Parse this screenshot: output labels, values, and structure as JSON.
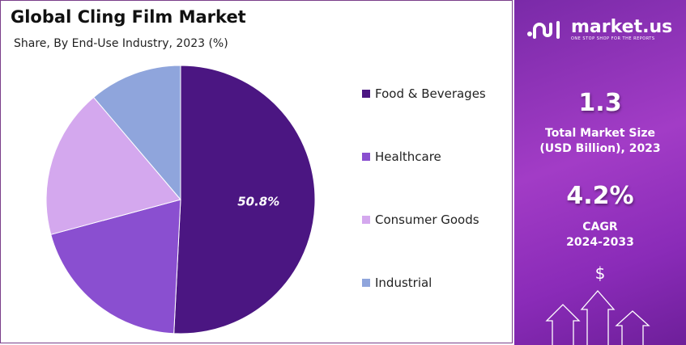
{
  "chart_data": {
    "type": "pie",
    "title": "Global Cling Film Market",
    "subtitle": "Share, By End-Use Industry, 2023 (%)",
    "categories": [
      "Food & Beverages",
      "Healthcare",
      "Consumer Goods",
      "Industrial"
    ],
    "values": [
      50.8,
      20.0,
      18.0,
      11.2
    ],
    "colors": [
      "#4b1682",
      "#8a4fd0",
      "#d4a8ee",
      "#8fa5dc"
    ],
    "data_labels": [
      "50.8%",
      "",
      "",
      ""
    ],
    "legend_placement": "right",
    "start": "top",
    "direction": "clockwise"
  },
  "sidebar": {
    "brand": "market.us",
    "tagline": "ONE STOP SHOP FOR THE REPORTS",
    "market_size_value": "1.3",
    "market_size_label_1": "Total Market Size",
    "market_size_label_2": "(USD Billion), 2023",
    "cagr_value": "4.2%",
    "cagr_label_1": "CAGR",
    "cagr_label_2": "2024-2033",
    "dollar": "$",
    "icons": [
      "market-us-logo",
      "dollar-icon",
      "arrow-up-icon"
    ]
  }
}
